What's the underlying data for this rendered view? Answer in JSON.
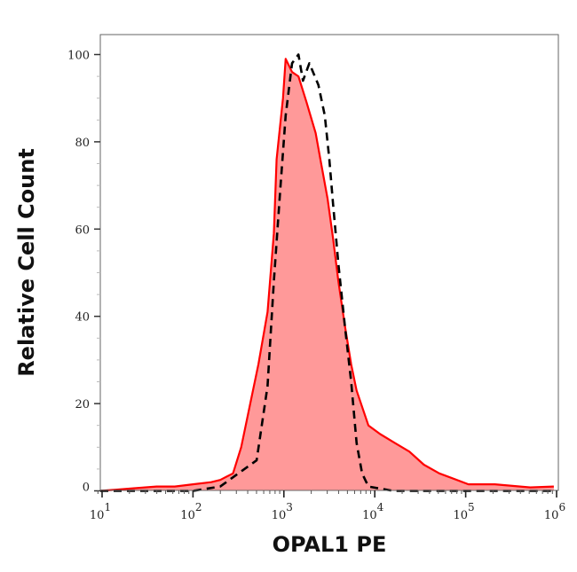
{
  "chart_data": {
    "type": "area",
    "xlabel": "OPAL1 PE",
    "ylabel": "Relative Cell Count",
    "xscale": "log",
    "xlim": [
      10,
      1000000
    ],
    "ylim": [
      0,
      100
    ],
    "x_ticks": [
      {
        "base": "10",
        "exp": "1"
      },
      {
        "base": "10",
        "exp": "2"
      },
      {
        "base": "10",
        "exp": "3"
      },
      {
        "base": "10",
        "exp": "4"
      },
      {
        "base": "10",
        "exp": "5"
      },
      {
        "base": "10",
        "exp": "6"
      }
    ],
    "y_ticks": [
      "0",
      "20",
      "40",
      "60",
      "80",
      "100"
    ],
    "grid": false,
    "series": [
      {
        "style": "filled solid",
        "color": "#ff0000",
        "fill": "#ff9999",
        "log10_x": [
          0.9,
          1.3,
          1.6,
          1.8,
          2.0,
          2.2,
          2.3,
          2.44,
          2.53,
          2.63,
          2.72,
          2.82,
          2.89,
          2.92,
          2.99,
          3.02,
          3.09,
          3.16,
          3.25,
          3.35,
          3.41,
          3.48,
          3.54,
          3.6,
          3.67,
          3.74,
          3.8,
          3.93,
          4.06,
          4.22,
          4.38,
          4.54,
          4.71,
          5.03,
          5.32,
          5.71,
          5.97
        ],
        "y": [
          0,
          0.5,
          1,
          1,
          1.5,
          2,
          2.5,
          4,
          10,
          20,
          29,
          41,
          59,
          76,
          90,
          99,
          96,
          95,
          89,
          82,
          75,
          67,
          58,
          48,
          38,
          29,
          23,
          15,
          13,
          11,
          9,
          6,
          4,
          1.5,
          1.5,
          0.8,
          1
        ]
      },
      {
        "style": "dashed",
        "color": "#000000",
        "log10_x": [
          0.9,
          1.5,
          2.0,
          2.3,
          2.5,
          2.7,
          2.82,
          2.89,
          2.96,
          3.02,
          3.09,
          3.16,
          3.21,
          3.28,
          3.38,
          3.45,
          3.5,
          3.54,
          3.6,
          3.67,
          3.74,
          3.8,
          3.86,
          3.93,
          4.2,
          5.0,
          5.97
        ],
        "y": [
          0,
          0,
          0,
          1,
          4,
          7,
          24,
          48,
          69,
          86,
          98,
          100,
          94,
          98,
          93,
          86,
          76,
          66,
          52,
          38,
          25,
          11,
          4,
          1,
          0,
          0,
          0
        ]
      }
    ]
  }
}
